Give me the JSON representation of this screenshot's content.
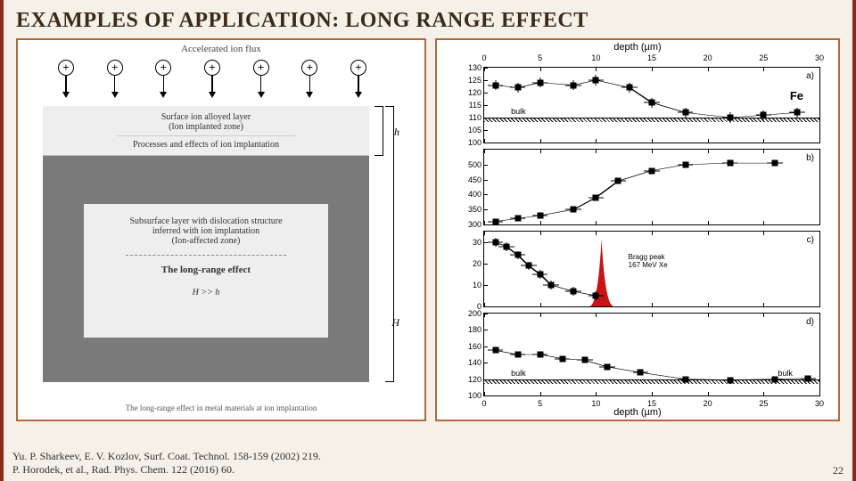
{
  "title": "EXAMPLES OF APPLICATION: LONG RANGE EFFECT",
  "left_diagram": {
    "flux_label": "Accelerated ion flux",
    "plus_count": 7,
    "surface_line1": "Surface ion alloyed layer",
    "surface_line2": "(Ion implanted zone)",
    "surface_line3": "Processes and effects of ion implantation",
    "sub_line1": "Subsurface layer with dislocation structure",
    "sub_line2": "inferred with ion implantation",
    "sub_line3": "(Ion-affected zone)",
    "lre_label": "The long-range effect",
    "hh_label": "H >> h",
    "h_small": "h",
    "h_big": "H",
    "caption": "The long-range effect in metal materials at ion implantation",
    "colors": {
      "outer_gray": "#7a7a7a",
      "inner_box": "#eeeeee"
    }
  },
  "right_chart": {
    "x_label": "depth (µm)",
    "xlim": [
      0,
      30
    ],
    "xticks": [
      0,
      5,
      10,
      15,
      20,
      25,
      30
    ],
    "panels": {
      "a": {
        "tag": "a)",
        "fe": "Fe",
        "ylim": [
          100,
          130
        ],
        "yticks": [
          100,
          105,
          110,
          115,
          120,
          125,
          130
        ],
        "bulk_label": "bulk",
        "bulk_y": 110,
        "points": [
          {
            "x": 1,
            "y": 123
          },
          {
            "x": 3,
            "y": 122
          },
          {
            "x": 5,
            "y": 124
          },
          {
            "x": 8,
            "y": 123
          },
          {
            "x": 10,
            "y": 125
          },
          {
            "x": 13,
            "y": 122
          },
          {
            "x": 15,
            "y": 116
          },
          {
            "x": 18,
            "y": 112
          },
          {
            "x": 22,
            "y": 110
          },
          {
            "x": 25,
            "y": 111
          },
          {
            "x": 28,
            "y": 112
          }
        ]
      },
      "b": {
        "tag": "b)",
        "ylim": [
          300,
          550
        ],
        "yticks": [
          300,
          350,
          400,
          450,
          500
        ],
        "points": [
          {
            "x": 1,
            "y": 310
          },
          {
            "x": 3,
            "y": 320
          },
          {
            "x": 5,
            "y": 330
          },
          {
            "x": 8,
            "y": 350
          },
          {
            "x": 10,
            "y": 390
          },
          {
            "x": 12,
            "y": 445
          },
          {
            "x": 15,
            "y": 480
          },
          {
            "x": 18,
            "y": 500
          },
          {
            "x": 22,
            "y": 505
          },
          {
            "x": 26,
            "y": 505
          }
        ]
      },
      "c": {
        "tag": "c)",
        "ylim": [
          0,
          35
        ],
        "yticks": [
          0,
          10,
          20,
          30
        ],
        "bragg_label": "Bragg peak\n167 MeV Xe",
        "bragg_peak": {
          "x": 10.5,
          "width": 2.2,
          "color": "#c81414"
        },
        "points": [
          {
            "x": 1,
            "y": 30
          },
          {
            "x": 2,
            "y": 28
          },
          {
            "x": 3,
            "y": 24
          },
          {
            "x": 4,
            "y": 19
          },
          {
            "x": 5,
            "y": 15
          },
          {
            "x": 6,
            "y": 10
          },
          {
            "x": 8,
            "y": 7
          },
          {
            "x": 10,
            "y": 5
          }
        ]
      },
      "d": {
        "tag": "d)",
        "ylim": [
          100,
          200
        ],
        "yticks": [
          100,
          120,
          140,
          160,
          180,
          200
        ],
        "bulk_label": "bulk",
        "bulk_y": 120,
        "points": [
          {
            "x": 1,
            "y": 155
          },
          {
            "x": 3,
            "y": 150
          },
          {
            "x": 5,
            "y": 150
          },
          {
            "x": 7,
            "y": 145
          },
          {
            "x": 9,
            "y": 143
          },
          {
            "x": 11,
            "y": 135
          },
          {
            "x": 14,
            "y": 128
          },
          {
            "x": 18,
            "y": 120
          },
          {
            "x": 22,
            "y": 119
          },
          {
            "x": 26,
            "y": 120
          },
          {
            "x": 29,
            "y": 121
          }
        ]
      }
    },
    "colors": {
      "marker": "#000000",
      "line": "#000000",
      "bragg": "#c81414"
    }
  },
  "footer": {
    "ref1": "Yu. P. Sharkeev, E. V. Kozlov, Surf. Coat. Technol. 158-159 (2002) 219.",
    "ref2": "P. Horodek, et al., Rad. Phys. Chem. 122 (2016) 60.",
    "page": "22"
  }
}
